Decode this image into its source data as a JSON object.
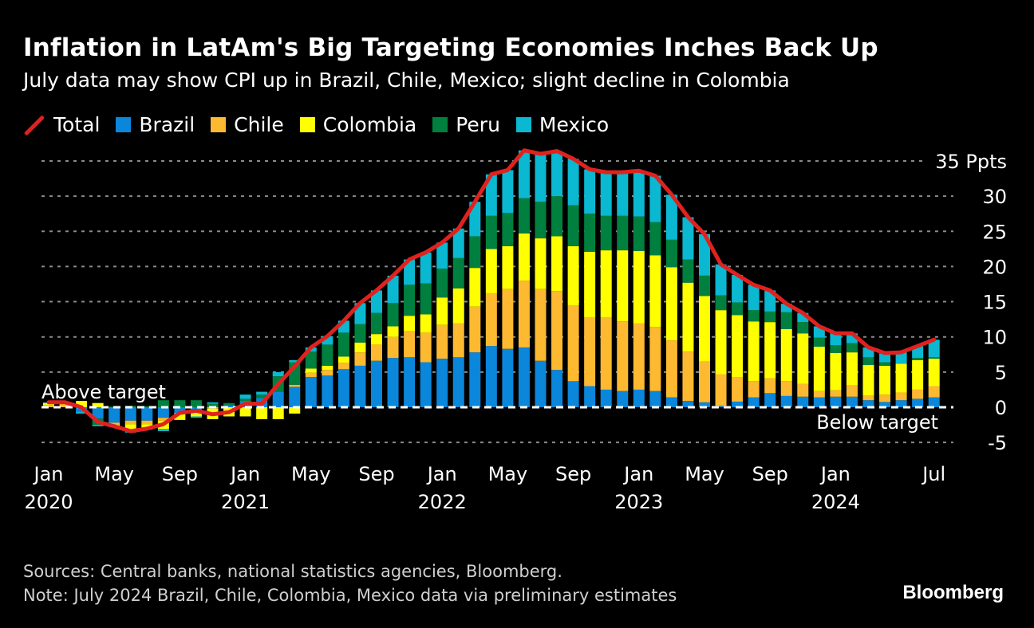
{
  "title": "Inflation in LatAm's Big Targeting Economies Inches Back Up",
  "subtitle": "July data may show CPI up in Brazil, Chile, Mexico; slight decline in Colombia",
  "legend": [
    {
      "label": "Total",
      "color": "#e0221f",
      "kind": "line"
    },
    {
      "label": "Brazil",
      "color": "#0a86db"
    },
    {
      "label": "Chile",
      "color": "#fdb92f"
    },
    {
      "label": "Colombia",
      "color": "#ffff00"
    },
    {
      "label": "Peru",
      "color": "#00803f"
    },
    {
      "label": "Mexico",
      "color": "#0ab8d1"
    }
  ],
  "footer": {
    "sources": "Sources: Central banks, national statistics agencies, Bloomberg.",
    "note": "Note: July 2024 Brazil, Chile, Colombia, Mexico data via preliminary estimates",
    "brand": "Bloomberg"
  },
  "chart_data": {
    "type": "bar",
    "stacked": true,
    "title": "Inflation in LatAm's Big Targeting Economies Inches Back Up",
    "ylabel": "Ppts",
    "ylim": [
      -5,
      37
    ],
    "yticks": [
      -5,
      0,
      5,
      10,
      15,
      20,
      25,
      30,
      35
    ],
    "ytick_labels": [
      "-5",
      "0",
      "5",
      "10",
      "15",
      "20",
      "25",
      "30",
      "35 Ppts"
    ],
    "xtick_labels": [
      {
        "month": 0,
        "top": "Jan",
        "bottom": "2020"
      },
      {
        "month": 4,
        "top": "May",
        "bottom": ""
      },
      {
        "month": 8,
        "top": "Sep",
        "bottom": ""
      },
      {
        "month": 12,
        "top": "Jan",
        "bottom": "2021"
      },
      {
        "month": 16,
        "top": "May",
        "bottom": ""
      },
      {
        "month": 20,
        "top": "Sep",
        "bottom": ""
      },
      {
        "month": 24,
        "top": "Jan",
        "bottom": "2022"
      },
      {
        "month": 28,
        "top": "May",
        "bottom": ""
      },
      {
        "month": 32,
        "top": "Sep",
        "bottom": ""
      },
      {
        "month": 36,
        "top": "Jan",
        "bottom": "2023"
      },
      {
        "month": 40,
        "top": "May",
        "bottom": ""
      },
      {
        "month": 44,
        "top": "Sep",
        "bottom": ""
      },
      {
        "month": 48,
        "top": "Jan",
        "bottom": "2024"
      },
      {
        "month": 54,
        "top": "Jul",
        "bottom": ""
      }
    ],
    "annotations": {
      "above": "Above target",
      "below": "Below target"
    },
    "x": [
      "2020-01",
      "2020-02",
      "2020-03",
      "2020-04",
      "2020-05",
      "2020-06",
      "2020-07",
      "2020-08",
      "2020-09",
      "2020-10",
      "2020-11",
      "2020-12",
      "2021-01",
      "2021-02",
      "2021-03",
      "2021-04",
      "2021-05",
      "2021-06",
      "2021-07",
      "2021-08",
      "2021-09",
      "2021-10",
      "2021-11",
      "2021-12",
      "2022-01",
      "2022-02",
      "2022-03",
      "2022-04",
      "2022-05",
      "2022-06",
      "2022-07",
      "2022-08",
      "2022-09",
      "2022-10",
      "2022-11",
      "2022-12",
      "2023-01",
      "2023-02",
      "2023-03",
      "2023-04",
      "2023-05",
      "2023-06",
      "2023-07",
      "2023-08",
      "2023-09",
      "2023-10",
      "2023-11",
      "2023-12",
      "2024-01",
      "2024-02",
      "2024-03",
      "2024-04",
      "2024-05",
      "2024-06",
      "2024-07"
    ],
    "series": [
      {
        "name": "Brazil",
        "color": "#0a86db",
        "values": [
          0,
          0,
          -0.6,
          -1.6,
          -2.2,
          -1.9,
          -1.9,
          -1.5,
          -0.8,
          -0.5,
          0,
          0.3,
          0.9,
          1.3,
          2.2,
          2.9,
          4.3,
          4.5,
          5.4,
          5.9,
          6.6,
          7.0,
          7.1,
          6.4,
          6.9,
          7.1,
          7.8,
          8.7,
          8.3,
          8.5,
          6.6,
          5.3,
          3.7,
          3.0,
          2.5,
          2.3,
          2.5,
          2.3,
          1.4,
          0.9,
          0.7,
          0.2,
          0.8,
          1.4,
          2.0,
          1.6,
          1.5,
          1.4,
          1.5,
          1.5,
          1.0,
          0.75,
          1.0,
          1.2,
          1.4
        ]
      },
      {
        "name": "Chile",
        "color": "#fdb92f",
        "values": [
          0.3,
          0.4,
          0,
          0,
          -0.3,
          -0.5,
          -0.5,
          -0.4,
          -0.2,
          0,
          -0.2,
          0,
          0,
          0,
          0,
          0.3,
          0.6,
          0.8,
          0.9,
          1.9,
          2.3,
          3.0,
          3.7,
          4.2,
          4.8,
          4.8,
          6.5,
          7.5,
          8.5,
          9.5,
          10.2,
          11.2,
          10.8,
          9.8,
          10.3,
          9.9,
          9.4,
          9.1,
          8.1,
          7.0,
          5.8,
          4.5,
          3.5,
          2.3,
          2.1,
          2.1,
          1.8,
          0.9,
          0.9,
          1.6,
          0.7,
          1.05,
          1.1,
          1.3,
          1.6
        ]
      },
      {
        "name": "Colombia",
        "color": "#ffff00",
        "values": [
          0.3,
          0.2,
          0.9,
          0.6,
          -0.2,
          -0.8,
          -0.6,
          -1.2,
          -0.8,
          -0.8,
          -1.5,
          -1.3,
          -1.3,
          -1.7,
          -1.7,
          -0.9,
          0.6,
          0.6,
          0.9,
          1.4,
          1.5,
          1.5,
          2.2,
          2.6,
          3.9,
          5.0,
          5.5,
          6.3,
          6.1,
          6.7,
          7.2,
          7.8,
          8.4,
          9.3,
          9.5,
          10.1,
          10.3,
          10.2,
          10.4,
          9.8,
          9.3,
          9.1,
          8.8,
          8.5,
          8.0,
          7.4,
          7.2,
          6.3,
          5.3,
          4.7,
          4.3,
          4.1,
          4.1,
          4.2,
          3.9
        ]
      },
      {
        "name": "Peru",
        "color": "#00803f",
        "values": [
          0,
          0,
          0,
          -0.9,
          0.1,
          0.2,
          0.15,
          1.0,
          1.0,
          1.0,
          0.5,
          0.3,
          0.3,
          0.5,
          2.2,
          3.2,
          2.4,
          3.0,
          3.4,
          2.6,
          3.0,
          3.3,
          4.4,
          4.4,
          4.1,
          4.3,
          4.5,
          4.7,
          4.7,
          5.0,
          5.2,
          5.7,
          5.8,
          5.4,
          4.9,
          4.9,
          4.9,
          4.7,
          3.9,
          3.3,
          2.9,
          2.1,
          1.8,
          1.6,
          1.5,
          2.4,
          1.6,
          1.3,
          1.1,
          1.3,
          1.1,
          0.5,
          0.0,
          0.3,
          0.2
        ]
      },
      {
        "name": "Mexico",
        "color": "#0ab8d1",
        "values": [
          0.1,
          0.1,
          -0.3,
          -0.2,
          -0.1,
          -0.4,
          -0.2,
          -0.3,
          0,
          -0.2,
          0.2,
          0,
          0.6,
          0.4,
          0.6,
          0.3,
          0.6,
          1.2,
          1.7,
          3.0,
          3.2,
          3.9,
          3.6,
          4.4,
          3.7,
          4.2,
          4.9,
          5.9,
          6.1,
          6.8,
          6.8,
          6.4,
          6.6,
          6.3,
          6.2,
          6.2,
          6.5,
          6.6,
          6.4,
          6.0,
          5.9,
          4.4,
          3.9,
          3.6,
          3.0,
          1.2,
          1.3,
          1.6,
          1.7,
          1.4,
          1.4,
          1.3,
          1.6,
          1.7,
          2.5
        ]
      }
    ],
    "total_series": {
      "name": "Total",
      "color": "#e0221f",
      "type": "line",
      "computed_as": "sum of series"
    },
    "grid": true,
    "legend_position": "top-left"
  }
}
